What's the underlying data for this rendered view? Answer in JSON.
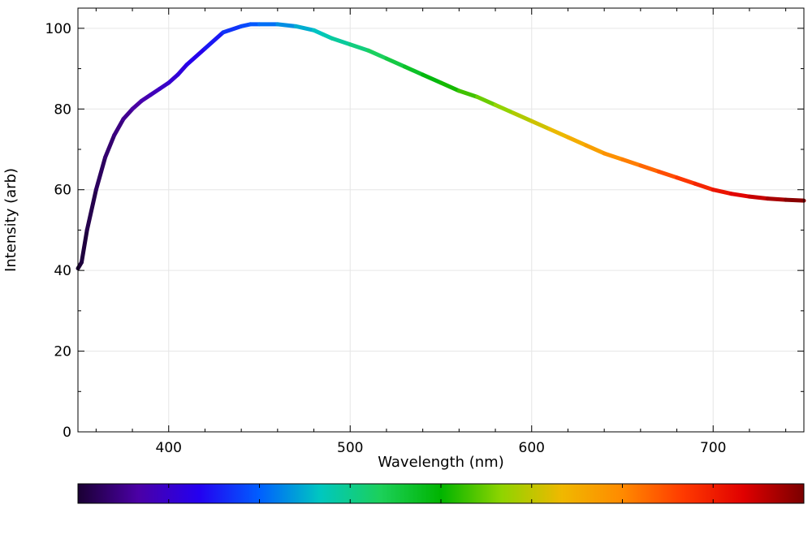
{
  "chart_data": {
    "type": "line",
    "title": "",
    "xlabel": "Wavelength (nm)",
    "ylabel": "Intensity (arb)",
    "xlim": [
      350,
      750
    ],
    "ylim": [
      0,
      105
    ],
    "x_ticks": [
      400,
      500,
      600,
      700
    ],
    "y_ticks": [
      0,
      20,
      40,
      60,
      80,
      100
    ],
    "x_tick_labels": [
      "400",
      "500",
      "600",
      "700"
    ],
    "y_tick_labels": [
      "0",
      "20",
      "40",
      "60",
      "80",
      "100"
    ],
    "grid": true,
    "legend": "none",
    "line_coloring": "by wavelength (visible spectrum)",
    "colorbar": {
      "position": "bottom",
      "range": [
        350,
        750
      ],
      "colors": [
        "#1a0033",
        "#4b00a6",
        "#2400f0",
        "#005fff",
        "#00c7c0",
        "#1cd05a",
        "#00b400",
        "#8fd400",
        "#f0b800",
        "#ff8a00",
        "#ff3a00",
        "#e00000",
        "#7a0000"
      ]
    },
    "series": [
      {
        "x": [
          350,
          352,
          355,
          360,
          365,
          370,
          375,
          380,
          385,
          390,
          395,
          400,
          405,
          410,
          420,
          430,
          440,
          445,
          450,
          460,
          470,
          480,
          485,
          490,
          500,
          510,
          520,
          530,
          540,
          550,
          560,
          570,
          580,
          590,
          600,
          610,
          620,
          630,
          640,
          650,
          660,
          670,
          680,
          690,
          700,
          710,
          720,
          730,
          740,
          750
        ],
        "y": [
          40.5,
          42,
          50,
          60,
          68,
          73.5,
          77.5,
          80,
          82,
          83.5,
          85,
          86.5,
          88.5,
          91,
          95,
          99,
          100.5,
          101,
          101,
          101,
          100.5,
          99.5,
          98.5,
          97.5,
          96,
          94.5,
          92.5,
          90.5,
          88.5,
          86.5,
          84.5,
          83,
          81,
          79,
          77,
          75,
          73,
          71,
          69,
          67.5,
          66,
          64.5,
          63,
          61.5,
          60,
          59,
          58.3,
          57.8,
          57.5,
          57.3
        ]
      }
    ]
  }
}
